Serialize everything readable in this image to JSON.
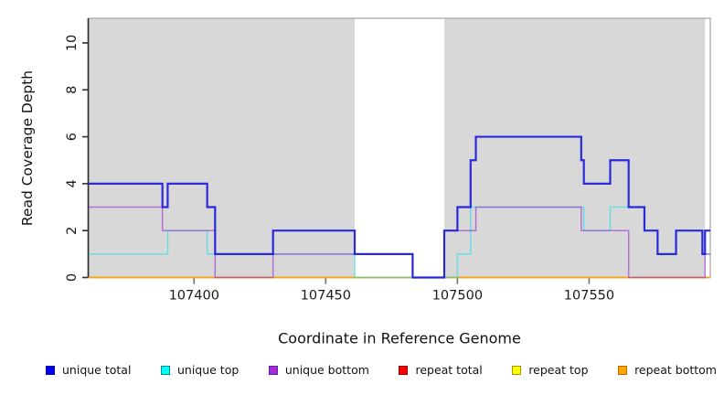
{
  "figure": {
    "x_axis_label": "Coordinate in Reference Genome",
    "y_axis_label": "Read Coverage Depth"
  },
  "axes": {
    "x": {
      "range": [
        107360,
        107596
      ],
      "ticks": [
        107400,
        107450,
        107500,
        107550
      ]
    },
    "y": {
      "range": [
        0,
        11.05
      ],
      "ticks": [
        0,
        2,
        4,
        6,
        8,
        10
      ]
    }
  },
  "colors": {
    "plot_background": "#ffffff",
    "shaded_region": "#d8d8d8",
    "plot_border": "#ababab",
    "y_axis_line": "#2e2e2e",
    "tick_mark": "#6e6e6e",
    "tick_text": "#1a1a1a"
  },
  "regions": {
    "shaded_bands": [
      [
        107360,
        107461
      ],
      [
        107495,
        107594
      ]
    ],
    "white_band": [
      107461,
      107495
    ]
  },
  "chart_data": {
    "type": "line",
    "step": true,
    "title": "",
    "xlabel": "Coordinate in Reference Genome",
    "ylabel": "Read Coverage Depth",
    "xlim": [
      107360,
      107596
    ],
    "ylim": [
      0,
      11
    ],
    "grid": false,
    "legend_position": "bottom",
    "note": "step values hold from each breakpoint x until the next breakpoint",
    "series": [
      {
        "name": "unique total",
        "color": "#0000EE",
        "render_color": "#2121DC",
        "width": 2.2,
        "opacity": 0.95,
        "breaks": [
          [
            107360,
            4
          ],
          [
            107388,
            3
          ],
          [
            107390,
            4
          ],
          [
            107405,
            3
          ],
          [
            107408,
            1
          ],
          [
            107430,
            2
          ],
          [
            107461,
            1
          ],
          [
            107483,
            0
          ],
          [
            107495,
            2
          ],
          [
            107500,
            3
          ],
          [
            107505,
            5
          ],
          [
            107507,
            6
          ],
          [
            107547,
            5
          ],
          [
            107548,
            4
          ],
          [
            107558,
            5
          ],
          [
            107565,
            3
          ],
          [
            107571,
            2
          ],
          [
            107576,
            1
          ],
          [
            107583,
            2
          ],
          [
            107593,
            1
          ],
          [
            107594,
            2
          ]
        ]
      },
      {
        "name": "unique top",
        "color": "#00FFFF",
        "render_color": "#00E2EE",
        "width": 1.5,
        "opacity": 0.5,
        "breaks": [
          [
            107360,
            1
          ],
          [
            107390,
            2
          ],
          [
            107405,
            1
          ],
          [
            107461,
            0
          ],
          [
            107500,
            1
          ],
          [
            107505,
            3
          ],
          [
            107548,
            2
          ],
          [
            107558,
            3
          ],
          [
            107571,
            2
          ],
          [
            107576,
            1
          ],
          [
            107583,
            2
          ],
          [
            107593,
            1
          ]
        ]
      },
      {
        "name": "unique bottom",
        "color": "#9932CC",
        "render_color": "#9932CC",
        "width": 1.5,
        "opacity": 0.62,
        "breaks": [
          [
            107360,
            3
          ],
          [
            107388,
            2
          ],
          [
            107408,
            0
          ],
          [
            107430,
            1
          ],
          [
            107483,
            0
          ],
          [
            107495,
            2
          ],
          [
            107507,
            3
          ],
          [
            107547,
            2
          ],
          [
            107565,
            0
          ],
          [
            107594,
            1
          ]
        ]
      },
      {
        "name": "repeat total",
        "color": "#DD0000",
        "render_color": "#DD0000",
        "width": 1.2,
        "opacity": 1,
        "breaks": [
          [
            107360,
            0
          ]
        ]
      },
      {
        "name": "repeat top",
        "color": "#FFFF00",
        "render_color": "#FFFF00",
        "width": 1.2,
        "opacity": 1,
        "breaks": [
          [
            107360,
            0
          ]
        ]
      },
      {
        "name": "repeat bottom",
        "color": "#FFA500",
        "render_color": "#FFA500",
        "width": 1.6,
        "opacity": 1,
        "breaks": [
          [
            107360,
            0
          ]
        ]
      }
    ]
  },
  "legend": {
    "items": [
      {
        "label": "unique total",
        "fill": "#0000EE",
        "border": "#00009A"
      },
      {
        "label": "unique top",
        "fill": "#00FFFF",
        "border": "#008B8B"
      },
      {
        "label": "unique bottom",
        "fill": "#A22DD6",
        "border": "#6A1B9A"
      },
      {
        "label": "repeat total",
        "fill": "#FF0000",
        "border": "#8B0000"
      },
      {
        "label": "repeat top",
        "fill": "#FFFF00",
        "border": "#9A9A00"
      },
      {
        "label": "repeat bottom",
        "fill": "#FFA500",
        "border": "#B36B00"
      }
    ]
  }
}
